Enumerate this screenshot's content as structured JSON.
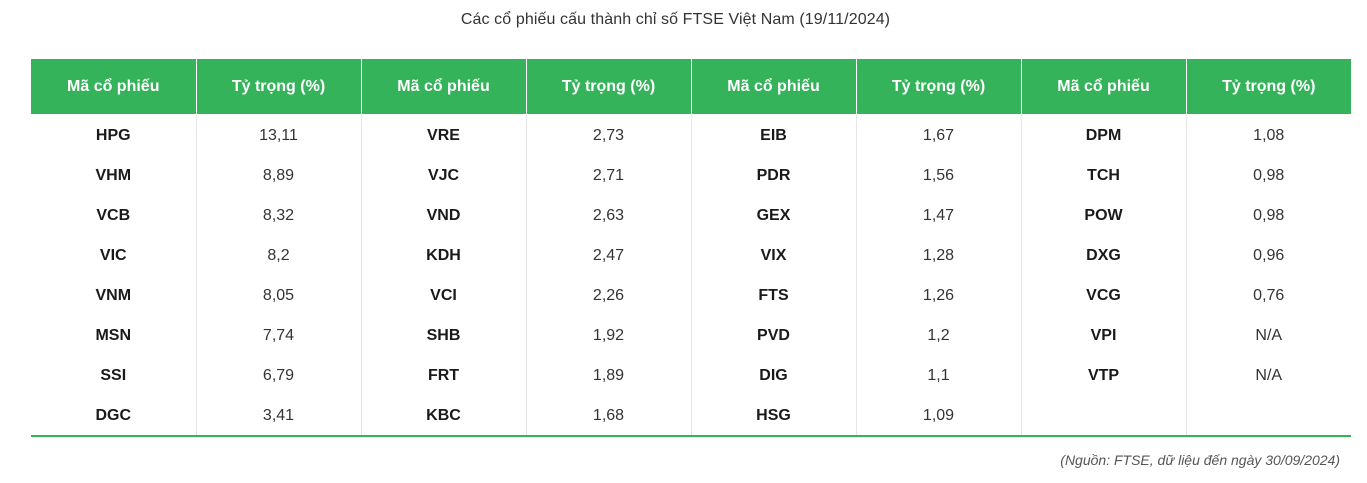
{
  "title": "Các cổ phiếu cấu thành chỉ số FTSE Việt Nam (19/11/2024)",
  "colors": {
    "header_bg": "#35b35b",
    "header_text": "#ffffff",
    "rule": "#35b35b"
  },
  "table": {
    "headers": [
      "Mã cổ phiếu",
      "Tỷ trọng (%)",
      "Mã cổ phiếu",
      "Tỷ trọng (%)",
      "Mã cổ phiếu",
      "Tỷ trọng (%)",
      "Mã cổ phiếu",
      "Tỷ trọng (%)"
    ],
    "rows": [
      [
        "HPG",
        "13,11",
        "VRE",
        "2,73",
        "EIB",
        "1,67",
        "DPM",
        "1,08"
      ],
      [
        "VHM",
        "8,89",
        "VJC",
        "2,71",
        "PDR",
        "1,56",
        "TCH",
        "0,98"
      ],
      [
        "VCB",
        "8,32",
        "VND",
        "2,63",
        "GEX",
        "1,47",
        "POW",
        "0,98"
      ],
      [
        "VIC",
        "8,2",
        "KDH",
        "2,47",
        "VIX",
        "1,28",
        "DXG",
        "0,96"
      ],
      [
        "VNM",
        "8,05",
        "VCI",
        "2,26",
        "FTS",
        "1,26",
        "VCG",
        "0,76"
      ],
      [
        "MSN",
        "7,74",
        "SHB",
        "1,92",
        "PVD",
        "1,2",
        "VPI",
        "N/A"
      ],
      [
        "SSI",
        "6,79",
        "FRT",
        "1,89",
        "DIG",
        "1,1",
        "VTP",
        "N/A"
      ],
      [
        "DGC",
        "3,41",
        "KBC",
        "1,68",
        "HSG",
        "1,09",
        "",
        ""
      ]
    ]
  },
  "source": "(Nguồn:  FTSE, dữ liệu đến ngày 30/09/2024)"
}
